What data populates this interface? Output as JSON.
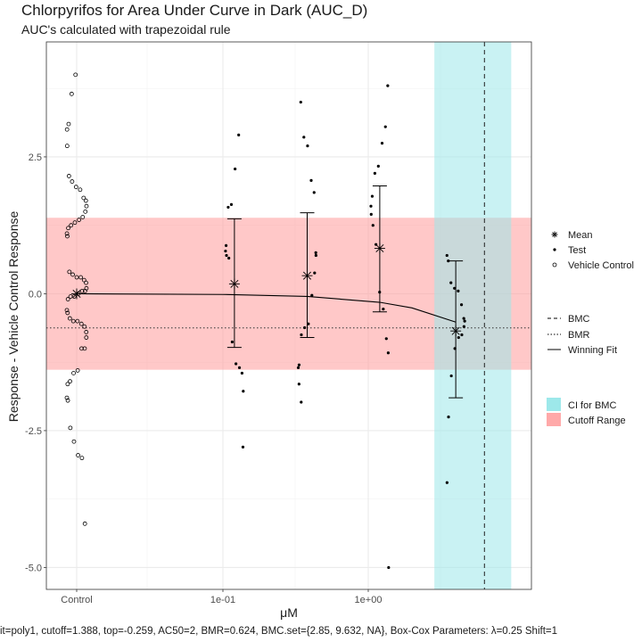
{
  "chart_data": {
    "type": "scatter",
    "title": "Chlorpyrifos for Area Under Curve in Dark (AUC_D)",
    "subtitle": "AUC's calculated with trapezoidal rule",
    "xlabel": "μM",
    "ylabel": "Response - Vehicle Control Response",
    "caption": "it=poly1, cutoff=1.388, top=-0.259, AC50=2, BMR=0.624, BMC.set={2.85, 9.632, NA}, Box-Cox Parameters: λ=0.25 Shift=1",
    "x_scale": "log10",
    "x_ticks": [
      {
        "label": "Control",
        "value": "control"
      },
      {
        "label": "1e-01",
        "value": 0.1
      },
      {
        "label": "1e+00",
        "value": 1
      }
    ],
    "ylim": [
      -5.4,
      4.6
    ],
    "y_ticks": [
      {
        "label": "2.5",
        "value": 2.5
      },
      {
        "label": "0.0",
        "value": 0.0
      },
      {
        "label": "-2.5",
        "value": -2.5
      },
      {
        "label": "-5.0",
        "value": -5.0
      }
    ],
    "grid": true,
    "cutoff_range": {
      "low": -1.388,
      "high": 1.388,
      "color": "#ff9a9a"
    },
    "bmc_ci": {
      "low": 2.85,
      "high": 9.632,
      "color": "#9de8ea"
    },
    "bmc": 6.3,
    "bmr": -0.624,
    "vehicle_control": [
      4.0,
      3.65,
      3.1,
      3.0,
      2.7,
      2.15,
      2.05,
      1.95,
      1.9,
      1.75,
      1.7,
      1.6,
      1.5,
      1.4,
      1.35,
      1.3,
      1.25,
      1.2,
      1.1,
      1.05,
      0.4,
      0.35,
      0.3,
      0.3,
      0.25,
      0.2,
      0.1,
      0.05,
      0.05,
      0.0,
      -0.05,
      -0.05,
      -0.1,
      -0.3,
      -0.35,
      -0.45,
      -0.5,
      -0.5,
      -0.55,
      -0.6,
      -0.7,
      -0.8,
      -1.0,
      -1.0,
      -1.4,
      -1.45,
      -1.6,
      -1.65,
      -1.9,
      -1.95,
      -2.45,
      -2.7,
      -2.95,
      -3.0,
      -4.2
    ],
    "concentrations": [
      {
        "x": 0.12,
        "mean": 0.18,
        "err_high": 1.37,
        "err_low": -0.98,
        "test": [
          2.9,
          2.28,
          1.63,
          1.58,
          0.88,
          0.78,
          0.7,
          0.65,
          -0.88,
          -1.28,
          -1.35,
          -1.45,
          -1.78,
          -2.8
        ]
      },
      {
        "x": 0.38,
        "mean": 0.33,
        "err_high": 1.48,
        "err_low": -0.8,
        "test": [
          3.5,
          2.86,
          2.7,
          2.07,
          1.85,
          0.75,
          0.7,
          0.38,
          -0.03,
          -0.55,
          -0.62,
          -0.75,
          -1.3,
          -1.35,
          -1.65,
          -1.98
        ]
      },
      {
        "x": 1.2,
        "mean": 0.83,
        "err_high": 1.97,
        "err_low": -0.33,
        "test": [
          3.8,
          3.05,
          2.75,
          2.33,
          2.2,
          1.78,
          1.6,
          1.45,
          1.25,
          0.9,
          0.03,
          -0.28,
          -0.82,
          -1.08,
          -5.0
        ]
      },
      {
        "x": 4.0,
        "mean": -0.68,
        "err_high": 0.6,
        "err_low": -1.9,
        "test": [
          0.7,
          0.6,
          0.2,
          0.1,
          0.05,
          -0.2,
          -0.45,
          -0.5,
          -0.6,
          -0.75,
          -0.8,
          -1.0,
          -1.5,
          -2.25,
          -3.45
        ]
      }
    ],
    "fit": {
      "x": [
        0.0001,
        0.1,
        0.38,
        1.2,
        2.0,
        4.0
      ],
      "y": [
        0.0,
        -0.013,
        -0.049,
        -0.156,
        -0.259,
        -0.518
      ]
    },
    "legend": {
      "group1": [
        "Mean",
        "Test",
        "Vehicle Control"
      ],
      "group2": [
        "BMC",
        "BMR",
        "Winning Fit"
      ],
      "group3": [
        "CI for BMC",
        "Cutoff Range"
      ]
    }
  }
}
